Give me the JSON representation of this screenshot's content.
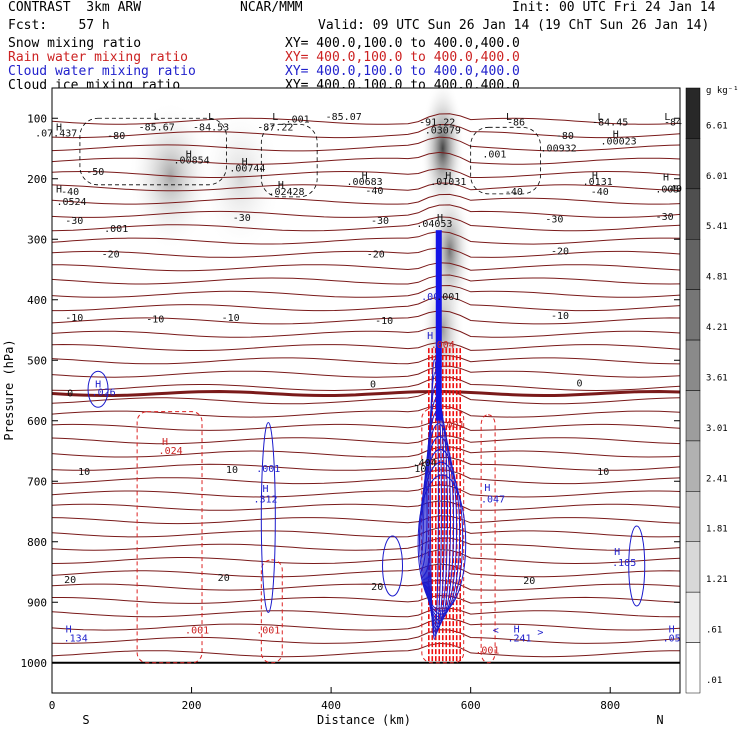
{
  "header": {
    "left1": "CONTRAST  3km ARW",
    "center1": "NCAR/MMM",
    "right1": "Init: 00 UTC Fri 24 Jan 14",
    "left2": "Fcst:    57 h",
    "right2": "Valid: 09 UTC Sun 26 Jan 14 (19 ChT Sun 26 Jan 14)",
    "fields": [
      {
        "name": "Snow mixing ratio",
        "xy": "XY= 400.0,100.0 to 400.0,400.0",
        "color": "#000000"
      },
      {
        "name": "Rain water mixing ratio",
        "xy": "XY= 400.0,100.0 to 400.0,400.0",
        "color": "#cc2222"
      },
      {
        "name": "Cloud water mixing ratio",
        "xy": "XY= 400.0,100.0 to 400.0,400.0",
        "color": "#2222cc"
      },
      {
        "name": "Cloud ice mixing ratio",
        "xy": "XY= 400.0,100.0 to 400.0,400.0",
        "color": "#000000"
      }
    ]
  },
  "chart_data": {
    "type": "heatmap",
    "xlabel": "Distance (km)",
    "ylabel": "Pressure (hPa)",
    "xlim": [
      0,
      900
    ],
    "ylim": [
      1050,
      50
    ],
    "x_ticks": [
      0,
      200,
      400,
      600,
      800
    ],
    "y_ticks": [
      100,
      200,
      300,
      400,
      500,
      600,
      700,
      800,
      900,
      1000
    ],
    "x_end_labels": {
      "left": "S",
      "right": "N"
    },
    "colorbar": {
      "unit": "g kg⁻¹",
      "labels": [
        "6.61",
        "6.01",
        "5.41",
        "4.81",
        "4.21",
        "3.61",
        "3.01",
        "2.41",
        "1.81",
        "1.21",
        ".61",
        ".01"
      ]
    },
    "snow_maxima": [
      {
        "x": 170,
        "p": 195,
        "amp": 0.45
      },
      {
        "x": 270,
        "p": 200,
        "amp": 0.2
      },
      {
        "x": 560,
        "p": 150,
        "amp": 0.95
      },
      {
        "x": 570,
        "p": 320,
        "amp": 0.7
      },
      {
        "x": 560,
        "p": 450,
        "amp": 0.5
      }
    ],
    "temperature_contours": [
      {
        "label": "-80",
        "p": 115
      },
      {
        "label": "-50",
        "p": 190
      },
      {
        "label": "-40",
        "p": 225
      },
      {
        "label": "-30",
        "p": 270
      },
      {
        "label": "-20",
        "p": 325
      },
      {
        "label": "-10",
        "p": 430
      },
      {
        "label": "0",
        "p": 555
      },
      {
        "label": "10",
        "p": 690
      },
      {
        "label": "20",
        "p": 870
      }
    ],
    "field_labels": [
      {
        "text": "H",
        "x": 10,
        "p": 120,
        "color": "black"
      },
      {
        "text": ".07.437",
        "x": 6,
        "p": 130,
        "color": "black"
      },
      {
        "text": "L",
        "x": 150,
        "p": 103,
        "color": "black"
      },
      {
        "text": "-85.67",
        "x": 150,
        "p": 120,
        "color": "black"
      },
      {
        "text": "L",
        "x": 228,
        "p": 103,
        "color": "black"
      },
      {
        "text": "-84.53",
        "x": 228,
        "p": 120,
        "color": "black"
      },
      {
        "text": "L",
        "x": 320,
        "p": 103,
        "color": "black"
      },
      {
        "text": ".001",
        "x": 352,
        "p": 107,
        "color": "black"
      },
      {
        "text": "-87.22",
        "x": 320,
        "p": 120,
        "color": "black"
      },
      {
        "text": "-85.07",
        "x": 418,
        "p": 103,
        "color": "black"
      },
      {
        "text": "-91.22",
        "x": 552,
        "p": 112,
        "color": "black"
      },
      {
        "text": ".03079",
        "x": 560,
        "p": 125,
        "color": "black"
      },
      {
        "text": "L",
        "x": 655,
        "p": 103,
        "color": "black"
      },
      {
        "text": "-86",
        "x": 665,
        "p": 112,
        "color": "black"
      },
      {
        "text": "L",
        "x": 786,
        "p": 103,
        "color": "black"
      },
      {
        "text": "-84.45",
        "x": 800,
        "p": 112,
        "color": "black"
      },
      {
        "text": "L",
        "x": 882,
        "p": 103,
        "color": "black"
      },
      {
        "text": "-84",
        "x": 890,
        "p": 112,
        "color": "black"
      },
      {
        "text": "-80",
        "x": 92,
        "p": 134,
        "color": "black"
      },
      {
        "text": "-80",
        "x": 735,
        "p": 134,
        "color": "black"
      },
      {
        "text": "H",
        "x": 808,
        "p": 132,
        "color": "black"
      },
      {
        "text": ".00023",
        "x": 812,
        "p": 143,
        "color": "black"
      },
      {
        "text": "H",
        "x": 196,
        "p": 165,
        "color": "black"
      },
      {
        "text": ".00854",
        "x": 200,
        "p": 175,
        "color": "black"
      },
      {
        "text": "H",
        "x": 276,
        "p": 177,
        "color": "black"
      },
      {
        "text": ".00744",
        "x": 280,
        "p": 188,
        "color": "black"
      },
      {
        "text": ".001",
        "x": 634,
        "p": 165,
        "color": "black"
      },
      {
        "text": ".00932",
        "x": 726,
        "p": 155,
        "color": "black"
      },
      {
        "text": "-50",
        "x": 62,
        "p": 194,
        "color": "black"
      },
      {
        "text": "H",
        "x": 448,
        "p": 200,
        "color": "black"
      },
      {
        "text": ".00683",
        "x": 448,
        "p": 210,
        "color": "black"
      },
      {
        "text": "H",
        "x": 568,
        "p": 200,
        "color": "black"
      },
      {
        "text": ".01031",
        "x": 568,
        "p": 210,
        "color": "black"
      },
      {
        "text": "H",
        "x": 778,
        "p": 200,
        "color": "black"
      },
      {
        "text": ".0131",
        "x": 782,
        "p": 210,
        "color": "black"
      },
      {
        "text": "H",
        "x": 880,
        "p": 203,
        "color": "black"
      },
      {
        "text": ".005",
        "x": 882,
        "p": 223,
        "color": "black"
      },
      {
        "text": "H",
        "x": 10,
        "p": 223,
        "color": "black"
      },
      {
        "text": ".0524",
        "x": 28,
        "p": 243,
        "color": "black"
      },
      {
        "text": "H",
        "x": 328,
        "p": 215,
        "color": "black"
      },
      {
        "text": ".02428",
        "x": 336,
        "p": 227,
        "color": "black"
      },
      {
        "text": "-40",
        "x": 462,
        "p": 225,
        "color": "black"
      },
      {
        "text": "-40",
        "x": 662,
        "p": 227,
        "color": "black"
      },
      {
        "text": "-40",
        "x": 785,
        "p": 227,
        "color": "black"
      },
      {
        "text": "-40",
        "x": 26,
        "p": 227,
        "color": "black"
      },
      {
        "text": "-40",
        "x": 890,
        "p": 222,
        "color": "black"
      },
      {
        "text": "-30",
        "x": 32,
        "p": 275,
        "color": "black"
      },
      {
        "text": "-30",
        "x": 272,
        "p": 270,
        "color": "black"
      },
      {
        "text": "-30",
        "x": 470,
        "p": 275,
        "color": "black"
      },
      {
        "text": "-30",
        "x": 720,
        "p": 272,
        "color": "black"
      },
      {
        "text": "-30",
        "x": 878,
        "p": 268,
        "color": "black"
      },
      {
        "text": ".001",
        "x": 92,
        "p": 288,
        "color": "black"
      },
      {
        "text": "H",
        "x": 556,
        "p": 270,
        "color": "black"
      },
      {
        "text": ".04053",
        "x": 548,
        "p": 280,
        "color": "black"
      },
      {
        "text": "-20",
        "x": 84,
        "p": 330,
        "color": "black"
      },
      {
        "text": "-20",
        "x": 464,
        "p": 330,
        "color": "black"
      },
      {
        "text": "-20",
        "x": 728,
        "p": 325,
        "color": "black"
      },
      {
        "text": ".001",
        "x": 568,
        "p": 400,
        "color": "black"
      },
      {
        "text": ".00",
        "x": 542,
        "p": 400,
        "color": "blue"
      },
      {
        "text": "-10",
        "x": 32,
        "p": 435,
        "color": "black"
      },
      {
        "text": "-10",
        "x": 148,
        "p": 438,
        "color": "black"
      },
      {
        "text": "-10",
        "x": 256,
        "p": 435,
        "color": "black"
      },
      {
        "text": "-10",
        "x": 476,
        "p": 440,
        "color": "black"
      },
      {
        "text": "-10",
        "x": 728,
        "p": 432,
        "color": "black"
      },
      {
        "text": "H",
        "x": 542,
        "p": 465,
        "color": "blue"
      },
      {
        "text": ".004",
        "x": 560,
        "p": 480,
        "color": "red"
      },
      {
        "text": "0",
        "x": 26,
        "p": 560,
        "color": "black"
      },
      {
        "text": "0",
        "x": 460,
        "p": 545,
        "color": "black"
      },
      {
        "text": "0",
        "x": 756,
        "p": 543,
        "color": "black"
      },
      {
        "text": "H",
        "x": 66,
        "p": 545,
        "color": "blue"
      },
      {
        "text": ".026",
        "x": 74,
        "p": 558,
        "color": "blue"
      },
      {
        "text": "H",
        "x": 162,
        "p": 640,
        "color": "red"
      },
      {
        "text": ".024",
        "x": 170,
        "p": 655,
        "color": "red"
      },
      {
        "text": ".001",
        "x": 574,
        "p": 612,
        "color": "red"
      },
      {
        "text": "10",
        "x": 46,
        "p": 690,
        "color": "black"
      },
      {
        "text": "10",
        "x": 258,
        "p": 686,
        "color": "black"
      },
      {
        "text": "10",
        "x": 528,
        "p": 685,
        "color": "black"
      },
      {
        "text": "10",
        "x": 790,
        "p": 690,
        "color": "black"
      },
      {
        "text": ".001",
        "x": 310,
        "p": 685,
        "color": "blue"
      },
      {
        "text": ".404",
        "x": 534,
        "p": 675,
        "color": "black"
      },
      {
        "text": "H",
        "x": 306,
        "p": 718,
        "color": "blue"
      },
      {
        "text": ".312",
        "x": 306,
        "p": 735,
        "color": "blue"
      },
      {
        "text": "H",
        "x": 624,
        "p": 716,
        "color": "blue"
      },
      {
        "text": ".047",
        "x": 632,
        "p": 735,
        "color": "blue"
      },
      {
        "text": "H",
        "x": 810,
        "p": 822,
        "color": "blue"
      },
      {
        "text": ".105",
        "x": 820,
        "p": 840,
        "color": "blue"
      },
      {
        "text": "20",
        "x": 26,
        "p": 868,
        "color": "black"
      },
      {
        "text": "20",
        "x": 246,
        "p": 865,
        "color": "black"
      },
      {
        "text": "20",
        "x": 466,
        "p": 880,
        "color": "black"
      },
      {
        "text": "20",
        "x": 684,
        "p": 870,
        "color": "black"
      },
      {
        "text": "H",
        "x": 24,
        "p": 950,
        "color": "blue"
      },
      {
        "text": ".134",
        "x": 34,
        "p": 965,
        "color": "blue"
      },
      {
        "text": ".001",
        "x": 208,
        "p": 952,
        "color": "red"
      },
      {
        "text": ".001",
        "x": 310,
        "p": 952,
        "color": "red"
      },
      {
        "text": "H",
        "x": 666,
        "p": 950,
        "color": "blue"
      },
      {
        "text": ".241",
        "x": 670,
        "p": 965,
        "color": "blue"
      },
      {
        "text": "<",
        "x": 636,
        "p": 952,
        "color": "blue"
      },
      {
        "text": ">",
        "x": 700,
        "p": 955,
        "color": "blue"
      },
      {
        "text": ".001",
        "x": 624,
        "p": 985,
        "color": "red"
      },
      {
        "text": "H",
        "x": 888,
        "p": 950,
        "color": "blue"
      },
      {
        "text": ".05",
        "x": 888,
        "p": 965,
        "color": "blue"
      }
    ]
  }
}
